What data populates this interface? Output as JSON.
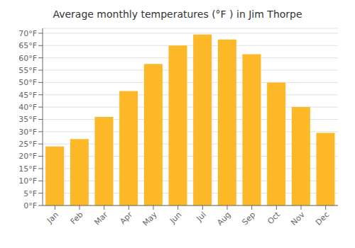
{
  "chart_data": {
    "type": "bar",
    "title": "Average monthly temperatures (°F ) in Jim Thorpe",
    "categories": [
      "Jan",
      "Feb",
      "Mar",
      "Apr",
      "May",
      "Jun",
      "Jul",
      "Aug",
      "Sep",
      "Oct",
      "Nov",
      "Dec"
    ],
    "values": [
      24,
      27,
      36,
      46.5,
      57.5,
      65,
      69.5,
      67.5,
      61.5,
      50,
      40,
      29.5
    ],
    "color": "#FDB827",
    "ylim": [
      0,
      72
    ],
    "yticks": [
      {
        "value": 0,
        "label": "0°F"
      },
      {
        "value": 5,
        "label": "5°F"
      },
      {
        "value": 10,
        "label": "10°F"
      },
      {
        "value": 15,
        "label": "15°F"
      },
      {
        "value": 20,
        "label": "20°F"
      },
      {
        "value": 25,
        "label": "25°F"
      },
      {
        "value": 30,
        "label": "30°F"
      },
      {
        "value": 35,
        "label": "35°F"
      },
      {
        "value": 40,
        "label": "40°F"
      },
      {
        "value": 45,
        "label": "45°F"
      },
      {
        "value": 50,
        "label": "50°F"
      },
      {
        "value": 55,
        "label": "55°F"
      },
      {
        "value": 60,
        "label": "60°F"
      },
      {
        "value": 65,
        "label": "65°F"
      },
      {
        "value": 70,
        "label": "70°F"
      }
    ],
    "grid": true
  }
}
